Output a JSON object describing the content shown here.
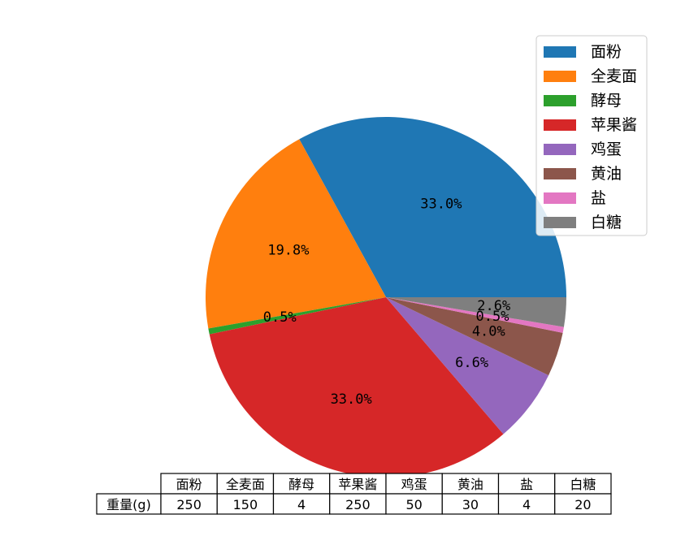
{
  "chart_data": {
    "type": "pie",
    "categories": [
      "面粉",
      "全麦面",
      "酵母",
      "苹果酱",
      "鸡蛋",
      "黄油",
      "盐",
      "白糖"
    ],
    "values": [
      250,
      150,
      4,
      250,
      50,
      30,
      4,
      20
    ],
    "percent_labels": [
      "33.0%",
      "19.8%",
      "0.5%",
      "33.0%",
      "6.6%",
      "4.0%",
      "0.5%",
      "2.6%"
    ],
    "colors": [
      "#1f77b4",
      "#ff7f0e",
      "#2ca02c",
      "#d62728",
      "#9467bd",
      "#8c564b",
      "#e377c2",
      "#7f7f7f"
    ],
    "start_angle_deg": 0,
    "direction": "counterclockwise",
    "legend_position": "top-right",
    "table": {
      "row_label": "重量(g)",
      "columns": [
        "面粉",
        "全麦面",
        "酵母",
        "苹果酱",
        "鸡蛋",
        "黄油",
        "盐",
        "白糖"
      ],
      "cells": [
        "250",
        "150",
        "4",
        "250",
        "50",
        "30",
        "4",
        "20"
      ]
    }
  }
}
